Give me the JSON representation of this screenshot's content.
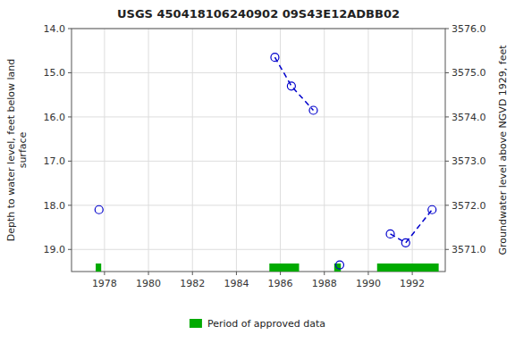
{
  "chart_data": {
    "type": "line",
    "title": "USGS 450418106240902 09S43E12ADBB02",
    "xlim": [
      1976.5,
      1993.5
    ],
    "xticks": [
      1978,
      1980,
      1982,
      1984,
      1986,
      1988,
      1990,
      1992
    ],
    "ylabel": "Depth to water level, feet below land\nsurface",
    "ylim": [
      19.5,
      14.0
    ],
    "yticks": [
      {
        "value": 14.0,
        "label": "14.0"
      },
      {
        "value": 15.0,
        "label": "15.0"
      },
      {
        "value": 16.0,
        "label": "16.0"
      },
      {
        "value": 17.0,
        "label": "17.0"
      },
      {
        "value": 18.0,
        "label": "18.0"
      },
      {
        "value": 19.0,
        "label": "19.0"
      }
    ],
    "y2label": "Groundwater level above NGVD 1929, feet",
    "y2lim": [
      3570.5,
      3576.0
    ],
    "y2ticks": [
      {
        "value": 3576.0,
        "label": "3576.0"
      },
      {
        "value": 3575.0,
        "label": "3575.0"
      },
      {
        "value": 3574.0,
        "label": "3574.0"
      },
      {
        "value": 3573.0,
        "label": "3573.0"
      },
      {
        "value": 3572.0,
        "label": "3572.0"
      },
      {
        "value": 3571.0,
        "label": "3571.0"
      }
    ],
    "grid": true,
    "legend": "bottom",
    "series": [
      {
        "color": "#0000cc",
        "line_style": "dashed",
        "marker": "open-circle",
        "x": [
          1977.75
        ],
        "values": [
          18.1
        ]
      },
      {
        "color": "#0000cc",
        "line_style": "dashed",
        "marker": "open-circle",
        "x": [
          1985.75,
          1986.5,
          1987.5
        ],
        "values": [
          14.65,
          15.3,
          15.85
        ]
      },
      {
        "color": "#0000cc",
        "line_style": "dashed",
        "marker": "open-circle",
        "x": [
          1988.7
        ],
        "values": [
          19.35
        ]
      },
      {
        "color": "#0000cc",
        "line_style": "dashed",
        "marker": "open-circle",
        "x": [
          1991.0,
          1991.7,
          1992.9
        ],
        "values": [
          18.65,
          18.85,
          18.1
        ]
      }
    ],
    "approved_periods": {
      "name": "Period of approved data",
      "color": "#00aa00",
      "ranges": [
        [
          1977.6,
          1977.85
        ],
        [
          1985.5,
          1986.85
        ],
        [
          1988.45,
          1988.75
        ],
        [
          1990.4,
          1993.2
        ]
      ]
    }
  }
}
